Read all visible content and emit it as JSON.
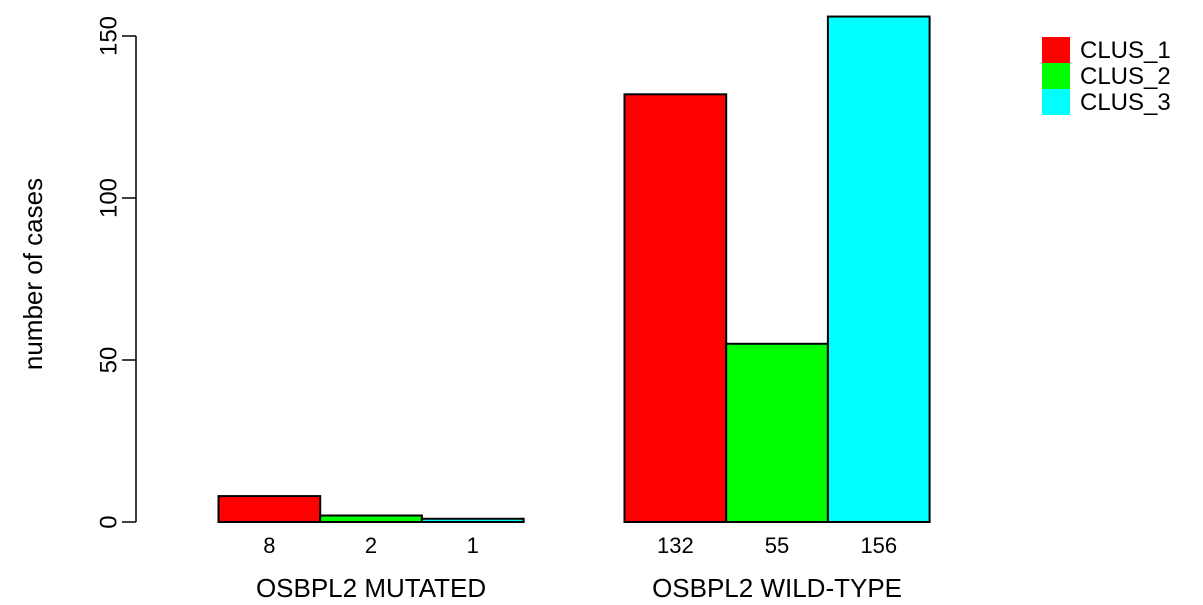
{
  "chart_data": {
    "type": "bar",
    "ylabel": "number of cases",
    "ylim": [
      0,
      150
    ],
    "yticks": [
      0,
      50,
      100,
      150
    ],
    "groups": [
      {
        "label": "OSBPL2 MUTATED",
        "values": [
          8,
          2,
          1
        ]
      },
      {
        "label": "OSBPL2 WILD-TYPE",
        "values": [
          132,
          55,
          156
        ]
      }
    ],
    "series": [
      {
        "name": "CLUS_1",
        "color": "#ff0000"
      },
      {
        "name": "CLUS_2",
        "color": "#00ff00"
      },
      {
        "name": "CLUS_3",
        "color": "#00ffff"
      }
    ],
    "legend_position": "top-right",
    "grid": false
  }
}
